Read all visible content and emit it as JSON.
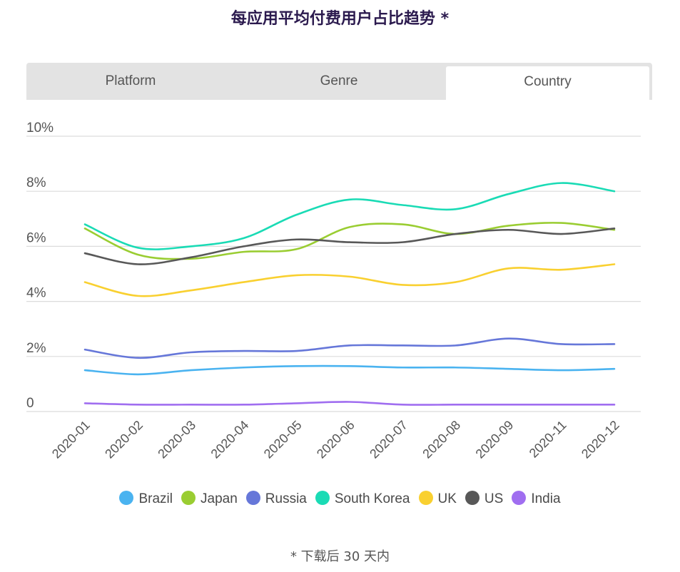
{
  "title": "每应用平均付费用户占比趋势 *",
  "tabs": [
    {
      "label": "Platform",
      "active": false
    },
    {
      "label": "Genre",
      "active": false
    },
    {
      "label": "Country",
      "active": true
    }
  ],
  "footnote": "* 下载后 30 天内",
  "chart_data": {
    "type": "line",
    "title": "每应用平均付费用户占比趋势 *",
    "x": [
      "2020-01",
      "2020-02",
      "2020-03",
      "2020-04",
      "2020-05",
      "2020-06",
      "2020-07",
      "2020-08",
      "2020-09",
      "2020-11",
      "2020-12"
    ],
    "ylim": [
      0,
      10
    ],
    "yticks": [
      "0",
      "2%",
      "4%",
      "6%",
      "8%",
      "10%"
    ],
    "grid": true,
    "legend_position": "bottom",
    "series": [
      {
        "name": "Brazil",
        "color": "#4ab3f0",
        "values": [
          1.5,
          1.35,
          1.5,
          1.6,
          1.65,
          1.65,
          1.6,
          1.6,
          1.55,
          1.5,
          1.55
        ]
      },
      {
        "name": "Japan",
        "color": "#9acd32",
        "values": [
          6.65,
          5.7,
          5.55,
          5.8,
          5.9,
          6.7,
          6.8,
          6.45,
          6.75,
          6.85,
          6.6
        ]
      },
      {
        "name": "Russia",
        "color": "#6677d9",
        "values": [
          2.25,
          1.95,
          2.15,
          2.2,
          2.2,
          2.4,
          2.4,
          2.4,
          2.65,
          2.45,
          2.45
        ]
      },
      {
        "name": "South Korea",
        "color": "#1adbb5",
        "values": [
          6.8,
          5.95,
          6.0,
          6.3,
          7.15,
          7.7,
          7.5,
          7.35,
          7.9,
          8.3,
          8.0
        ]
      },
      {
        "name": "UK",
        "color": "#f9d030",
        "values": [
          4.7,
          4.2,
          4.4,
          4.7,
          4.95,
          4.9,
          4.6,
          4.7,
          5.2,
          5.15,
          5.35
        ]
      },
      {
        "name": "US",
        "color": "#585858",
        "values": [
          5.75,
          5.35,
          5.6,
          6.0,
          6.25,
          6.15,
          6.15,
          6.45,
          6.6,
          6.45,
          6.65
        ]
      },
      {
        "name": "India",
        "color": "#a06ef0",
        "values": [
          0.3,
          0.25,
          0.25,
          0.25,
          0.3,
          0.35,
          0.25,
          0.25,
          0.25,
          0.25,
          0.25
        ]
      }
    ]
  }
}
